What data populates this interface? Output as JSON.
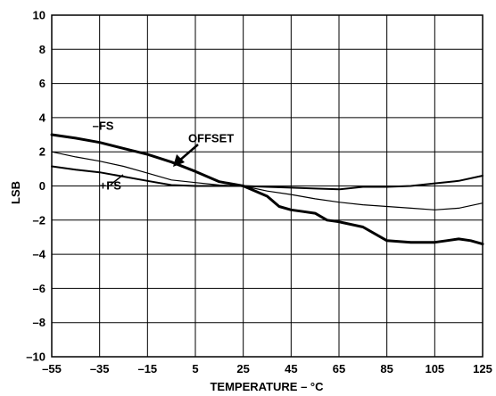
{
  "chart_data": {
    "type": "line",
    "xlabel": "TEMPERATURE – °C",
    "ylabel": "LSB",
    "xlim": [
      -55,
      125
    ],
    "ylim": [
      -10,
      10
    ],
    "x_ticks": [
      -55,
      -35,
      -15,
      5,
      25,
      45,
      65,
      85,
      105,
      125
    ],
    "y_ticks": [
      10,
      8,
      6,
      4,
      2,
      0,
      -2,
      -4,
      -6,
      -8,
      -10
    ],
    "x_tick_labels": [
      "–55",
      "–35",
      "–15",
      "5",
      "25",
      "45",
      "65",
      "85",
      "105",
      "125"
    ],
    "y_tick_labels": [
      "10",
      "8",
      "6",
      "4",
      "2",
      "0",
      "–2",
      "–4",
      "–6",
      "–8",
      "–10"
    ],
    "grid": true,
    "series": [
      {
        "name": "–FS",
        "x": [
          -55,
          -45,
          -35,
          -25,
          -15,
          -5,
          5,
          15,
          25,
          35,
          40,
          45,
          50,
          55,
          60,
          65,
          75,
          85,
          95,
          105,
          110,
          115,
          120,
          125
        ],
        "y": [
          3.0,
          2.8,
          2.55,
          2.2,
          1.85,
          1.4,
          0.85,
          0.25,
          0.0,
          -0.6,
          -1.2,
          -1.4,
          -1.5,
          -1.6,
          -2.0,
          -2.1,
          -2.4,
          -3.2,
          -3.3,
          -3.3,
          -3.2,
          -3.1,
          -3.2,
          -3.4
        ],
        "stroke_width": 3
      },
      {
        "name": "OFFSET",
        "x": [
          -55,
          -45,
          -35,
          -25,
          -15,
          -5,
          5,
          15,
          25,
          35,
          45,
          55,
          65,
          75,
          85,
          95,
          105,
          115,
          125
        ],
        "y": [
          2.0,
          1.7,
          1.45,
          1.15,
          0.75,
          0.35,
          0.2,
          0.05,
          0.0,
          -0.3,
          -0.5,
          -0.75,
          -0.95,
          -1.1,
          -1.2,
          -1.3,
          -1.4,
          -1.3,
          -1.0
        ],
        "stroke_width": 1.2
      },
      {
        "name": "+FS",
        "x": [
          -55,
          -45,
          -35,
          -25,
          -15,
          -5,
          5,
          15,
          25,
          35,
          45,
          55,
          65,
          75,
          85,
          95,
          105,
          115,
          125
        ],
        "y": [
          1.15,
          0.95,
          0.8,
          0.55,
          0.3,
          0.05,
          0.0,
          0.0,
          0.0,
          -0.05,
          -0.1,
          -0.15,
          -0.2,
          -0.05,
          -0.05,
          0.0,
          0.15,
          0.3,
          0.6
        ],
        "stroke_width": 2
      }
    ],
    "annotations": [
      {
        "text": "–FS",
        "x": -38,
        "y": 3.3
      },
      {
        "text": "OFFSET",
        "x": 2,
        "y": 2.55
      },
      {
        "text": "+FS",
        "x": -35,
        "y": -0.2
      }
    ],
    "colors": {
      "line": "#000000",
      "grid": "#000000"
    }
  }
}
